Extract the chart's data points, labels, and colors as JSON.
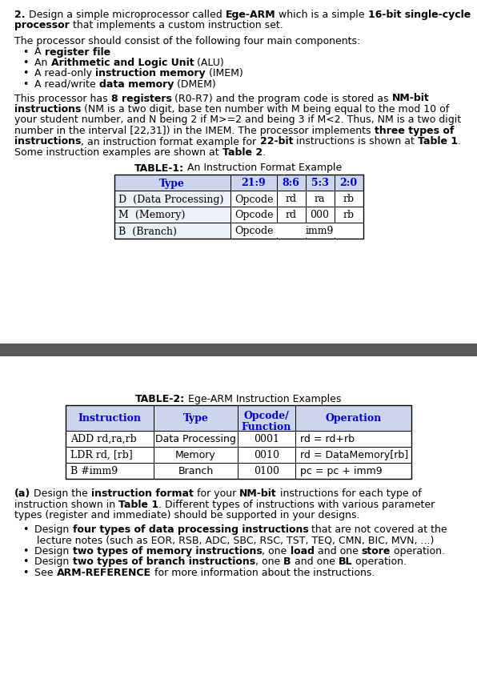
{
  "bg_color": "#ffffff",
  "page_width": 5.96,
  "page_height": 8.54,
  "divider_color": "#5a5a5a",
  "table1_header": [
    "Type",
    "21:9",
    "8:6",
    "5:3",
    "2:0"
  ],
  "table1_rows": [
    [
      "D  (Data Processing)",
      "Opcode",
      "rd",
      "ra",
      "rb"
    ],
    [
      "M  (Memory)",
      "Opcode",
      "rd",
      "000",
      "rb"
    ],
    [
      "B  (Branch)",
      "Opcode",
      "",
      "imm9",
      ""
    ]
  ],
  "table1_header_color": "#cdd5ed",
  "table1_text_color_header": "#0000cc",
  "table1_border_color": "#000000",
  "table2_header": [
    "Instruction",
    "Type",
    "Opcode/\nFunction",
    "Operation"
  ],
  "table2_rows": [
    [
      "ADD rd,ra,rb",
      "Data Processing",
      "0001",
      "rd = rd+rb"
    ],
    [
      "LDR rd, [rb]",
      "Memory",
      "0010",
      "rd = DataMemory[rb]"
    ],
    [
      "B #imm9",
      "Branch",
      "0100",
      "pc = pc + imm9"
    ]
  ],
  "table2_header_color": "#cdd5ed",
  "table2_text_color_header": "#0000cc",
  "table2_border_color": "#000000"
}
